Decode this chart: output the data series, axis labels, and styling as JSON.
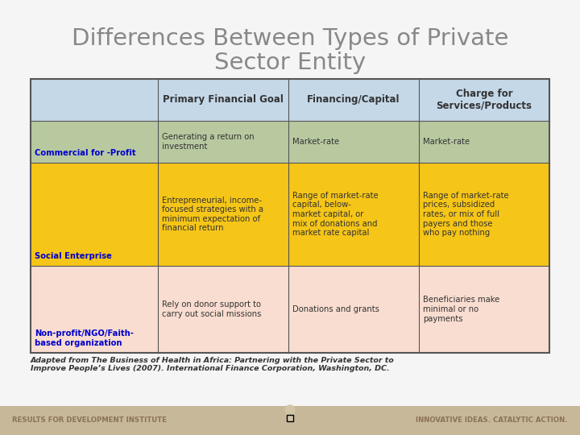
{
  "title_line1": "Differences Between Types of Private",
  "title_line2": "Sector Entity",
  "title_color": "#888888",
  "bg_color": "#f5f5f5",
  "table_border_color": "#555555",
  "header_bg": "#c5d8e8",
  "row1_bg": "#b8c9a0",
  "row2_bg": "#f5c518",
  "row3_bg": "#f9ddd0",
  "col_header_labels": [
    "Primary Financial Goal",
    "Financing/Capital",
    "Charge for\nServices/Products"
  ],
  "rows": [
    {
      "label": "Commercial for -Profit",
      "label_color": "#0000cc",
      "col1": "Generating a return on\ninvestment",
      "col2": "Market-rate",
      "col3": "Market-rate"
    },
    {
      "label": "Social Enterprise",
      "label_color": "#0000cc",
      "col1": "Entrepreneurial, income-\nfocused strategies with a\nminimum expectation of\nfinancial return",
      "col2": "Range of market-rate\ncapital, below-\nmarket capital, or\nmix of donations and\nmarket rate capital",
      "col3": "Range of market-rate\nprices, subsidized\nrates, or mix of full\npayers and those\nwho pay nothing"
    },
    {
      "label": "Non-profit/NGO/Faith-\nbased organization",
      "label_color": "#0000cc",
      "col1": "Rely on donor support to\ncarry out social missions",
      "col2": "Donations and grants",
      "col3": "Beneficiaries make\nminimal or no\npayments"
    }
  ],
  "footer_text": "Adapted from The Business of Health in Africa: Partnering with the Private Sector to\nImprove People’s Lives (2007). International Finance Corporation, Washington, DC.",
  "footer_color": "#333333",
  "bottom_bar_color": "#c8b89a",
  "bottom_left_text": "RESULTS FOR DEVELOPMENT INSTITUTE",
  "bottom_right_text": "INNOVATIVE IDEAS. CATALYTIC ACTION.",
  "bottom_text_color": "#8b7355"
}
